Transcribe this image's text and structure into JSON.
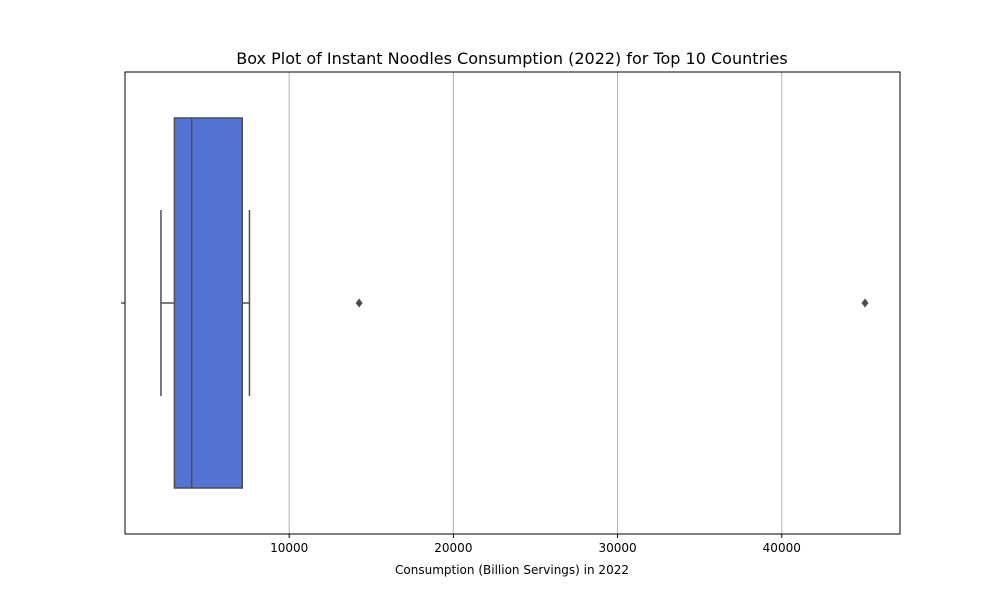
{
  "chart_data": {
    "type": "box",
    "orientation": "horizontal",
    "title": "Box Plot of Instant Noodles Consumption (2022) for Top 10 Countries",
    "xlabel": "Consumption (Billion Servings) in 2022",
    "ylabel": "",
    "xlim": [
      0,
      47200
    ],
    "x_ticks": [
      10000,
      20000,
      30000,
      40000
    ],
    "x_tick_labels": [
      "10000",
      "20000",
      "30000",
      "40000"
    ],
    "grid": "vertical",
    "box": {
      "whisker_low": 2190,
      "q1": 3010,
      "median": 4060,
      "q3": 7140,
      "whisker_high": 7580,
      "outliers": [
        14260,
        45070
      ]
    },
    "colors": {
      "box_fill": "#5374d4",
      "box_edge": "#4d4d4d",
      "grid": "#b0b0b0"
    }
  }
}
